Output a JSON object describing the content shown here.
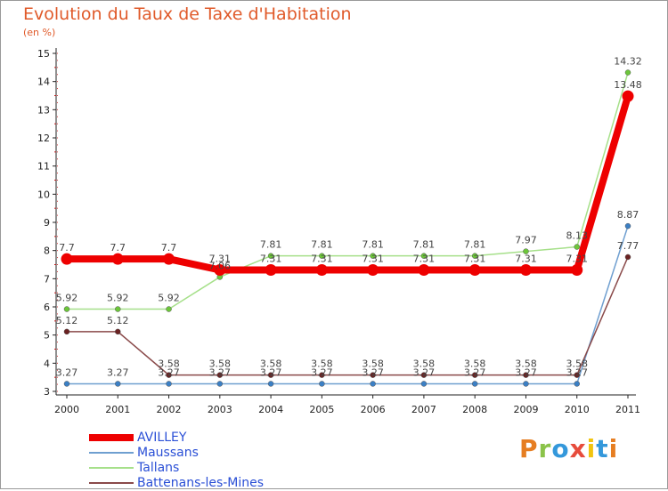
{
  "title": "Evolution du Taux de Taxe d'Habitation",
  "unit": "(en %)",
  "brand": {
    "text": "Proxiti",
    "letter_colors": [
      "#e67e22",
      "#8bc34a",
      "#3498db",
      "#e74c3c",
      "#f1c40f",
      "#3498db",
      "#e67e22"
    ]
  },
  "chart_data": {
    "type": "line",
    "title": "Evolution du Taux de Taxe d'Habitation",
    "ylabel": "(en %)",
    "xlabel": "",
    "x": [
      "2000",
      "2001",
      "2002",
      "2003",
      "2004",
      "2005",
      "2006",
      "2007",
      "2008",
      "2009",
      "2010",
      "2011"
    ],
    "yticks": [
      3,
      4,
      5,
      6,
      7,
      8,
      9,
      10,
      11,
      12,
      13,
      14,
      15
    ],
    "ylim": [
      3,
      15
    ],
    "grid": false,
    "legend": "bottom-left",
    "series": [
      {
        "name": "AVILLEY",
        "color": "#ee0000",
        "emphasis": true,
        "values": [
          7.7,
          7.7,
          7.7,
          7.31,
          7.31,
          7.31,
          7.31,
          7.31,
          7.31,
          7.31,
          7.31,
          13.48
        ],
        "labels": [
          "7.7",
          "7.7",
          "7.7",
          "7.31",
          "7.31",
          "7.31",
          "7.31",
          "7.31",
          "7.31",
          "7.31",
          "7.31",
          "13.48"
        ]
      },
      {
        "name": "Maussans",
        "color": "#6f9fd0",
        "marker": "#3b7fc4",
        "values": [
          3.27,
          3.27,
          3.27,
          3.27,
          3.27,
          3.27,
          3.27,
          3.27,
          3.27,
          3.27,
          3.27,
          8.87
        ],
        "labels": [
          "3.27",
          "3.27",
          "3.27",
          "3.27",
          "3.27",
          "3.27",
          "3.27",
          "3.27",
          "3.27",
          "3.27",
          "3.27",
          "8.87"
        ]
      },
      {
        "name": "Tallans",
        "color": "#a6e08a",
        "marker": "#6cc63a",
        "values": [
          5.92,
          5.92,
          5.92,
          7.06,
          7.81,
          7.81,
          7.81,
          7.81,
          7.81,
          7.97,
          8.13,
          14.32
        ],
        "labels": [
          "5.92",
          "5.92",
          "5.92",
          "7.06",
          "7.81",
          "7.81",
          "7.81",
          "7.81",
          "7.81",
          "7.97",
          "8.13",
          "14.32"
        ]
      },
      {
        "name": "Battenans-les-Mines",
        "color": "#8a4a4a",
        "marker": "#6b2222",
        "values": [
          5.12,
          5.12,
          3.58,
          3.58,
          3.58,
          3.58,
          3.58,
          3.58,
          3.58,
          3.58,
          3.58,
          7.77
        ],
        "labels": [
          "5.12",
          "5.12",
          "3.58",
          "3.58",
          "3.58",
          "3.58",
          "3.58",
          "3.58",
          "3.58",
          "3.58",
          "3.58",
          "7.77"
        ]
      }
    ]
  }
}
